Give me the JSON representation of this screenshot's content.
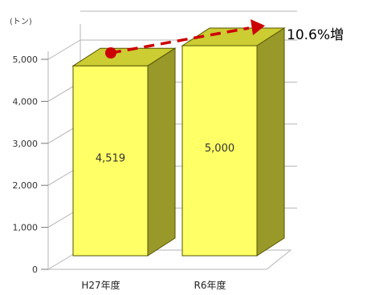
{
  "chart_data": {
    "type": "bar",
    "unit_label": "(トン)",
    "categories": [
      "H27年度",
      "R6年度"
    ],
    "values": [
      4519,
      5000
    ],
    "value_labels": [
      "4,519",
      "5,000"
    ],
    "ylim": [
      0,
      5000
    ],
    "yticks": [
      0,
      1000,
      2000,
      3000,
      4000,
      5000
    ],
    "ytick_labels": [
      "0",
      "1,000",
      "2,000",
      "3,000",
      "4,000",
      "5,000"
    ],
    "grid": true,
    "bar_colors": {
      "front": "#ffff66",
      "top": "#cccc33",
      "side": "#99992a",
      "edge": "#555500"
    },
    "annotation": {
      "text": "10.6%増",
      "color": "#cc0000"
    }
  }
}
